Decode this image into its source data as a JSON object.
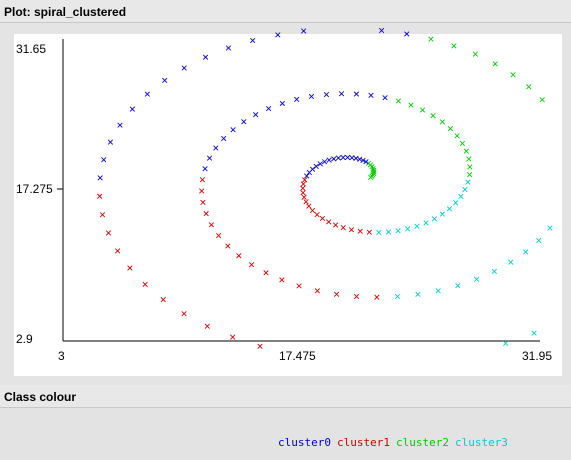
{
  "window": {
    "plot_title": "Plot: spiral_clustered",
    "class_colour_title": "Class colour"
  },
  "chart_data": {
    "type": "scatter",
    "marker": "x",
    "xlim": [
      3,
      31.95
    ],
    "ylim": [
      2.9,
      31.65
    ],
    "x_ticks": [
      "3",
      "17.475",
      "31.95"
    ],
    "y_ticks": [
      "31.65",
      "17.275",
      "2.9"
    ],
    "colors": {
      "cluster0": "#0000cc",
      "cluster1": "#cc0000",
      "cluster2": "#00cc00",
      "cluster3": "#00cccc"
    },
    "legend": [
      "cluster0",
      "cluster1",
      "cluster2",
      "cluster3"
    ],
    "spiral": {
      "center": [
        21.1,
        18.3
      ],
      "r0": 0.6,
      "growth": 1.8,
      "theta_start": 0.0,
      "theta_end": 18.5,
      "aspect_y": 1.0
    }
  }
}
